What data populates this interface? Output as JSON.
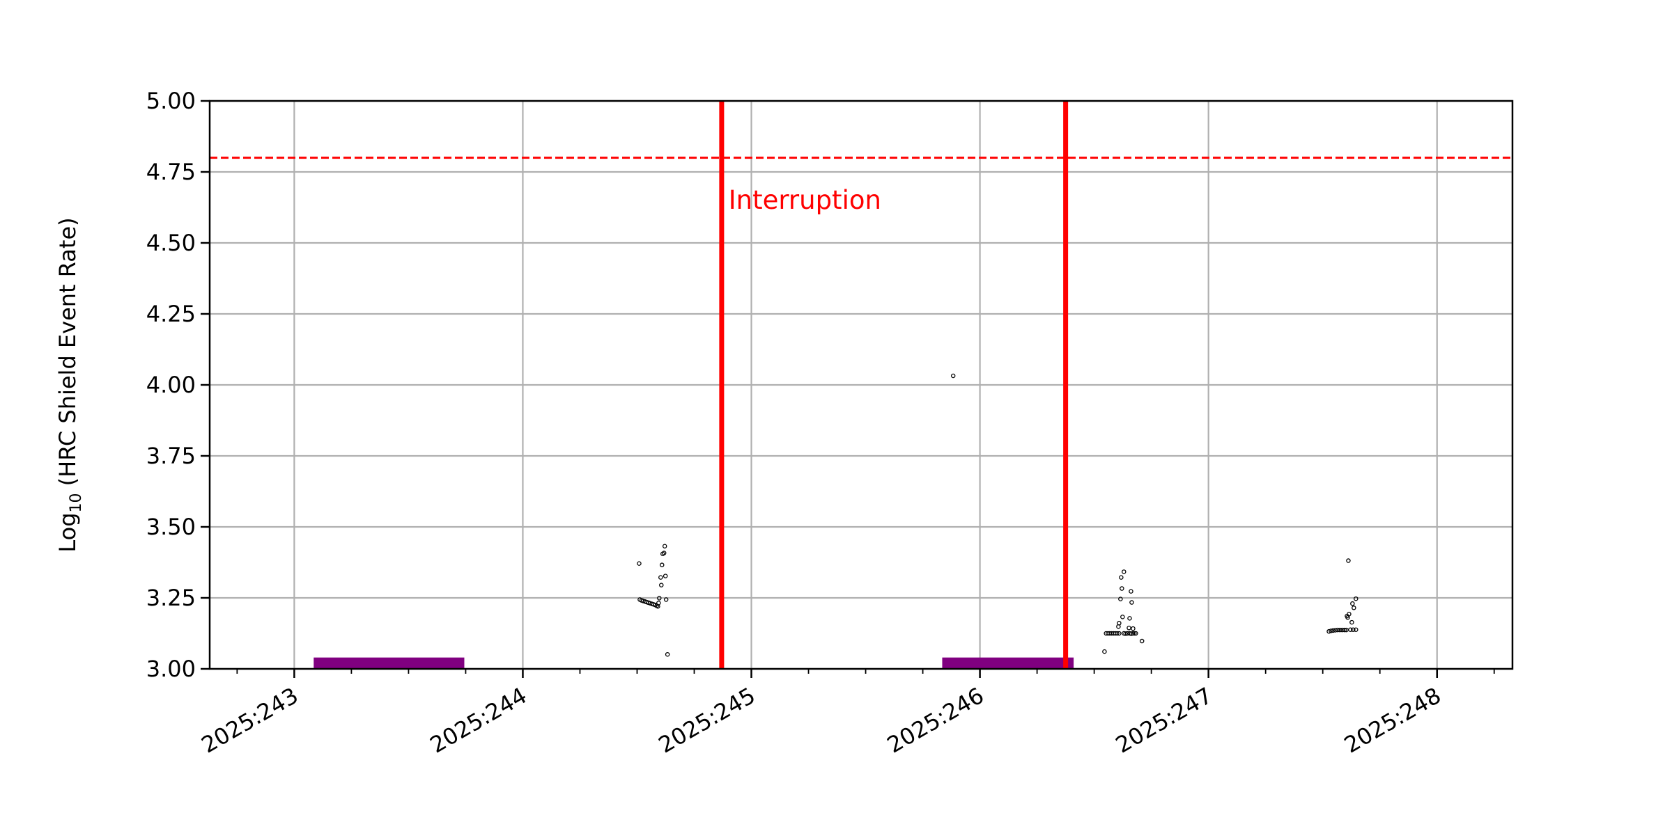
{
  "chart_data": {
    "type": "scatter",
    "title": "",
    "xlabel": "",
    "ylabel": "Log10 (HRC Shield Event Rate)",
    "ylabel_parts": {
      "base": "Log",
      "sub": "10",
      "rest": " (HRC Shield Event Rate)"
    },
    "xlim": [
      242.63,
      248.33
    ],
    "ylim": [
      3.0,
      5.0
    ],
    "grid": true,
    "x_ticks": [
      {
        "value": 243,
        "label": "2025:243"
      },
      {
        "value": 244,
        "label": "2025:244"
      },
      {
        "value": 245,
        "label": "2025:245"
      },
      {
        "value": 246,
        "label": "2025:246"
      },
      {
        "value": 247,
        "label": "2025:247"
      },
      {
        "value": 248,
        "label": "2025:248"
      }
    ],
    "x_minor_step": 0.25,
    "y_ticks": [
      {
        "value": 3.0,
        "label": "3.00"
      },
      {
        "value": 3.25,
        "label": "3.25"
      },
      {
        "value": 3.5,
        "label": "3.50"
      },
      {
        "value": 3.75,
        "label": "3.75"
      },
      {
        "value": 4.0,
        "label": "4.00"
      },
      {
        "value": 4.25,
        "label": "4.25"
      },
      {
        "value": 4.5,
        "label": "4.50"
      },
      {
        "value": 4.75,
        "label": "4.75"
      },
      {
        "value": 5.0,
        "label": "5.00"
      }
    ],
    "threshold": {
      "value": 4.8,
      "color": "#ff0000",
      "style": "dashed"
    },
    "interruptions": {
      "color": "#ff0000",
      "lines": [
        244.87,
        246.375
      ],
      "label": "Interruption",
      "label_position": {
        "x": 244.9,
        "y": 4.62
      }
    },
    "spans": {
      "color": "#800080",
      "ranges": [
        [
          243.085,
          243.744
        ],
        [
          245.835,
          246.41
        ]
      ],
      "height": 0.04
    },
    "points": {
      "color": "#000000",
      "x": [
        244.509,
        244.621,
        244.612,
        244.618,
        244.609,
        244.603,
        244.624,
        244.606,
        244.597,
        244.627,
        244.594,
        244.633,
        244.512,
        244.52,
        244.527,
        244.535,
        244.542,
        244.55,
        244.557,
        244.565,
        244.572,
        244.58,
        244.586,
        244.591,
        245.883,
        246.63,
        246.618,
        246.621,
        246.661,
        246.615,
        246.664,
        246.624,
        246.655,
        246.609,
        246.606,
        246.652,
        246.67,
        246.709,
        246.545,
        246.552,
        246.56,
        246.568,
        246.576,
        246.584,
        246.592,
        246.6,
        246.609,
        246.63,
        246.637,
        246.645,
        246.655,
        246.662,
        246.669,
        246.676,
        246.682,
        247.612,
        247.645,
        247.63,
        247.636,
        247.615,
        247.606,
        247.609,
        247.627,
        247.527,
        247.536,
        247.545,
        247.555,
        247.565,
        247.575,
        247.585,
        247.595,
        247.603,
        247.621,
        247.633,
        247.645
      ],
      "y": [
        3.371,
        3.432,
        3.405,
        3.408,
        3.366,
        3.322,
        3.327,
        3.295,
        3.249,
        3.244,
        3.232,
        3.051,
        3.244,
        3.241,
        3.239,
        3.237,
        3.235,
        3.233,
        3.231,
        3.229,
        3.227,
        3.225,
        3.222,
        3.22,
        4.032,
        3.342,
        3.322,
        3.283,
        3.273,
        3.246,
        3.234,
        3.183,
        3.178,
        3.161,
        3.149,
        3.144,
        3.142,
        3.098,
        3.061,
        3.125,
        3.125,
        3.125,
        3.125,
        3.125,
        3.125,
        3.125,
        3.125,
        3.125,
        3.124,
        3.125,
        3.125,
        3.124,
        3.125,
        3.125,
        3.125,
        3.381,
        3.247,
        3.23,
        3.215,
        3.193,
        3.186,
        3.181,
        3.164,
        3.132,
        3.134,
        3.135,
        3.136,
        3.137,
        3.137,
        3.137,
        3.137,
        3.137,
        3.138,
        3.138,
        3.138
      ]
    }
  }
}
